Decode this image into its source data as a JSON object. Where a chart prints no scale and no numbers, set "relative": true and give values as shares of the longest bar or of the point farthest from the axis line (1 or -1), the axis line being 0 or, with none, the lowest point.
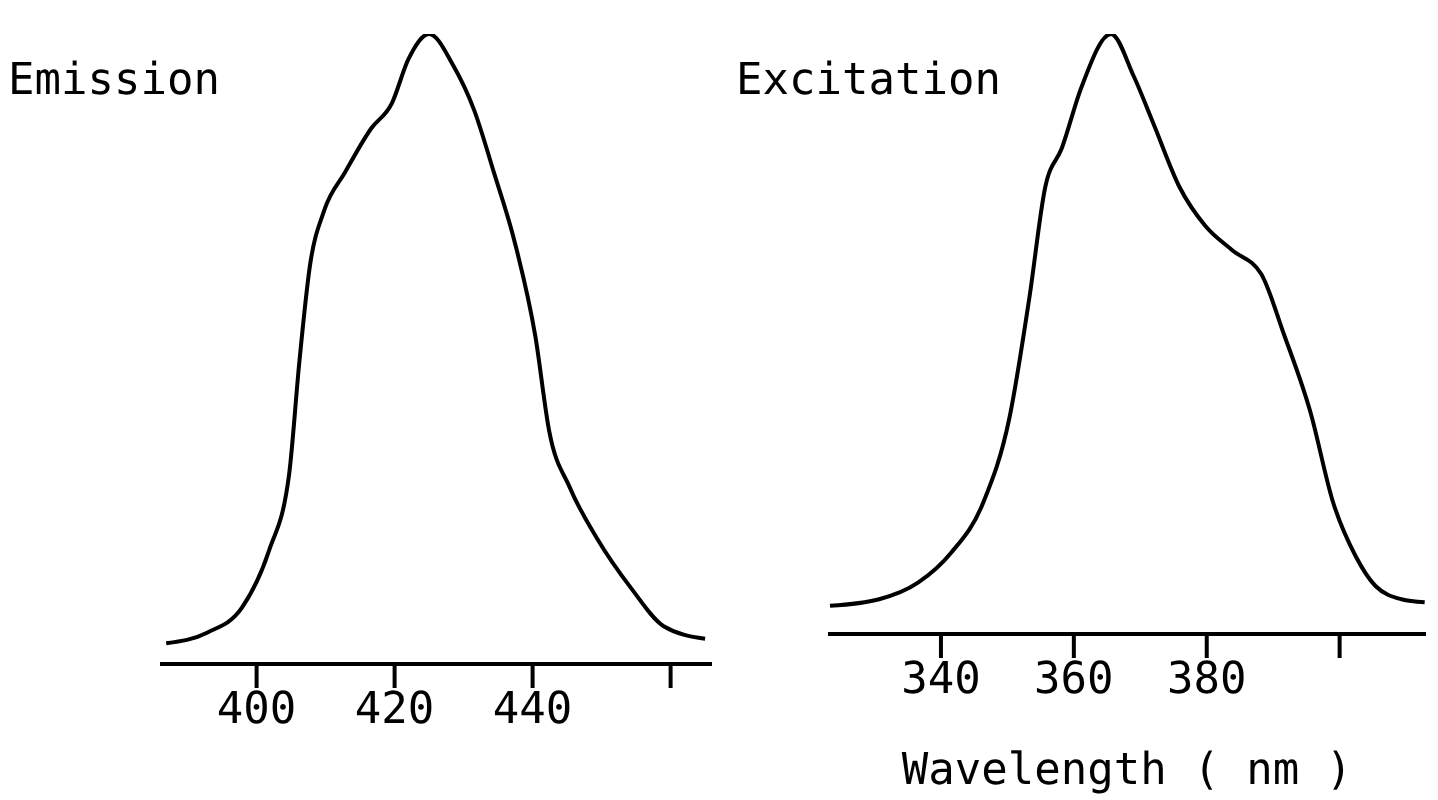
{
  "chart_data": [
    {
      "type": "line",
      "title": "Emission",
      "relative": true,
      "xlim": [
        386,
        466
      ],
      "xticks": [
        400,
        420,
        440,
        {
          "value": 460,
          "label": null
        }
      ],
      "series": [
        {
          "color": "#000000",
          "x": [
            386.9,
            392.9,
            397.9,
            401.8,
            404.7,
            406.2,
            407.7,
            409.8,
            412.8,
            416.6,
            419.6,
            422,
            425,
            428.5,
            431.5,
            434.4,
            437.4,
            440.4,
            442.4,
            445.4,
            449.3,
            454.3,
            459,
            465
          ],
          "values": [
            0.033,
            0.05,
            0.09,
            0.18,
            0.3,
            0.48,
            0.63,
            0.72,
            0.78,
            0.85,
            0.89,
            0.96,
            1.0,
            0.95,
            0.88,
            0.78,
            0.67,
            0.52,
            0.37,
            0.28,
            0.2,
            0.12,
            0.06,
            0.04
          ]
        }
      ]
    },
    {
      "type": "line",
      "title": "Excitation",
      "xlabel": "Wavelength ( nm )",
      "relative": true,
      "xlim": [
        323,
        413
      ],
      "xticks": [
        340,
        360,
        380,
        {
          "value": 400,
          "label": null
        }
      ],
      "series": [
        {
          "color": "#000000",
          "x": [
            323.3,
            330.7,
            336.6,
            341.5,
            346.4,
            350.3,
            353.3,
            355.7,
            358.2,
            361.1,
            365.6,
            369,
            372,
            375.9,
            379.8,
            383.8,
            388.2,
            391.6,
            395.6,
            399,
            402.4,
            405.4,
            409.3,
            412.8
          ],
          "values": [
            0.047,
            0.058,
            0.086,
            0.135,
            0.22,
            0.36,
            0.56,
            0.745,
            0.81,
            0.91,
            1.0,
            0.93,
            0.85,
            0.745,
            0.68,
            0.64,
            0.6,
            0.5,
            0.37,
            0.22,
            0.13,
            0.08,
            0.058,
            0.053
          ]
        }
      ]
    }
  ]
}
